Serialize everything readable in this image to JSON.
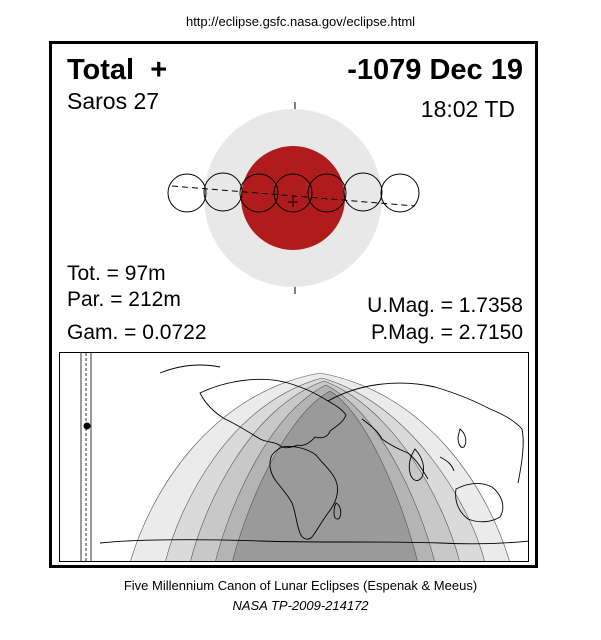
{
  "url": "http://eclipse.gsfc.nasa.gov/eclipse.html",
  "eclipse": {
    "type": "Total",
    "type_symbol": "+",
    "date": "-1079 Dec 19",
    "saros": "Saros  27",
    "time": "18:02 TD",
    "totality": "Tot. =  97m",
    "partial": "Par. = 212m",
    "gamma": "Gam. = 0.0722",
    "umbral_magnitude": "U.Mag. = 1.7358",
    "penumbral_magnitude": "P.Mag. = 2.7150"
  },
  "colors": {
    "umbra": "#b01c1c",
    "penumbra": "#e8e8e8",
    "visibility_full": "#9a9a9a",
    "visibility_band_1": "#b4b4b4",
    "visibility_band_2": "#c8c8c8",
    "visibility_band_3": "#dadada",
    "visibility_band_4": "#ebebeb"
  },
  "footer": {
    "line1": "Five Millennium Canon of Lunar Eclipses (Espenak & Meeus)",
    "line2": "NASA TP-2009-214172"
  }
}
